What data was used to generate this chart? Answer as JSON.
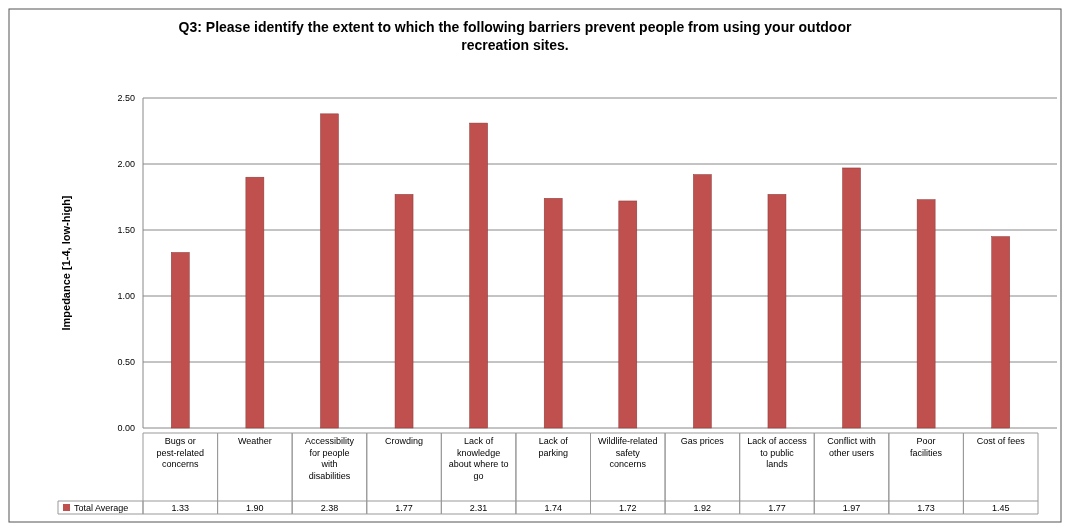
{
  "chart_data": {
    "type": "bar",
    "title": "Q3: Please identify the extent to which the following barriers prevent people from using your outdoor recreation sites.",
    "ylabel": "Impedance [1-4, low-high]",
    "categories": [
      "Bugs or pest-related concerns",
      "Weather",
      "Accessibility for people with disabilities",
      "Crowding",
      "Lack of knowledge about where to go",
      "Lack of parking",
      "Wildlife-related safety concerns",
      "Gas prices",
      "Lack of access to public lands",
      "Conflict with other users",
      "Poor facilities",
      "Cost of fees"
    ],
    "series": [
      {
        "name": "Total Average",
        "color": "#c0504d",
        "values": [
          1.33,
          1.9,
          2.38,
          1.77,
          2.31,
          1.74,
          1.72,
          1.92,
          1.77,
          1.97,
          1.73,
          1.45
        ]
      }
    ],
    "value_labels": [
      "1.33",
      "1.90",
      "2.38",
      "1.77",
      "2.31",
      "1.74",
      "1.72",
      "1.92",
      "1.77",
      "1.97",
      "1.73",
      "1.45"
    ],
    "ylim": [
      0,
      2.5
    ],
    "yticks": [
      {
        "value": 0,
        "label": "0.00"
      },
      {
        "value": 0.5,
        "label": "0.50"
      },
      {
        "value": 1,
        "label": "1.00"
      },
      {
        "value": 1.5,
        "label": "1.50"
      },
      {
        "value": 2,
        "label": "2.00"
      },
      {
        "value": 2.5,
        "label": "2.50"
      }
    ],
    "grid": "y",
    "legend": "bottom"
  }
}
